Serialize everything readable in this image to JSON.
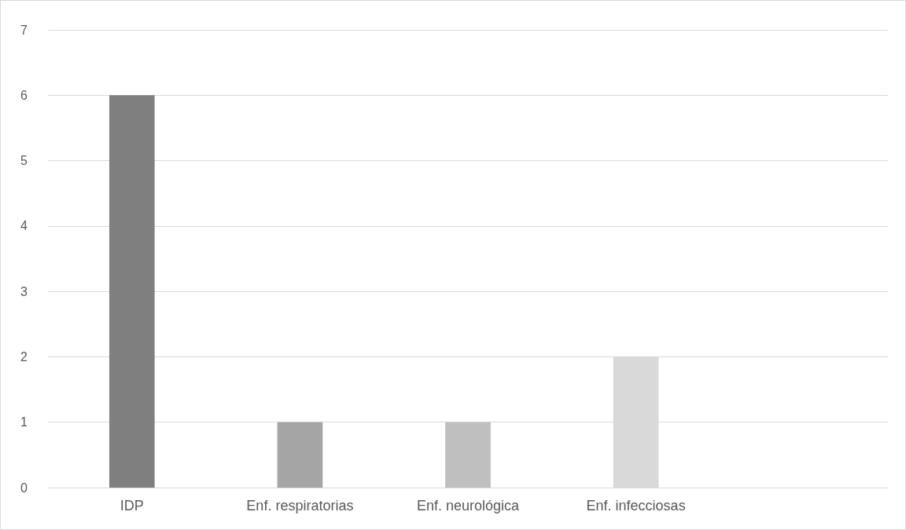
{
  "chart_data": {
    "type": "bar",
    "categories": [
      "IDP",
      "Enf. respiratorias",
      "Enf. neurológica",
      "Enf. infecciosas",
      null
    ],
    "values": [
      6,
      1,
      1,
      2,
      null
    ],
    "colors": [
      "#7f7f7f",
      "#a5a5a5",
      "#bfbfbf",
      "#d9d9d9",
      "#d9d9d9"
    ],
    "ylim": [
      0,
      7
    ],
    "yticks": [
      0,
      1,
      2,
      3,
      4,
      5,
      6,
      7
    ],
    "grid": "y"
  }
}
